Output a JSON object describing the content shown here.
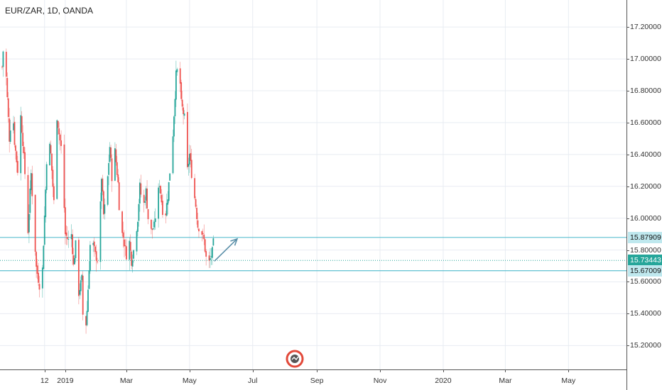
{
  "header": {
    "title": "EUR/ZAR, 1D, OANDA"
  },
  "chart_data": {
    "type": "candlestick",
    "symbol": "EUR/ZAR",
    "interval": "1D",
    "source": "OANDA",
    "ylim": [
      15.05,
      17.37
    ],
    "y_ticks": [
      "17.20000",
      "17.00000",
      "16.80000",
      "16.60000",
      "16.40000",
      "16.20000",
      "16.00000",
      "15.80000",
      "15.60000",
      "15.40000",
      "15.20000"
    ],
    "x_ticks": [
      "12",
      "2019",
      "Mar",
      "May",
      "Jul",
      "Sep",
      "Nov",
      "2020",
      "Mar",
      "May"
    ],
    "grid": true,
    "colors": {
      "up": "#26a69a",
      "down": "#ef5350",
      "level_line": "#5bbfd0",
      "arrow": "#5a8fa8",
      "current_badge": "#26a69a",
      "level_badge": "#bfe8ee"
    },
    "close_path": [
      [
        "2018-11-01",
        16.95
      ],
      [
        "2018-11-03",
        17.15
      ],
      [
        "2018-11-06",
        16.75
      ],
      [
        "2018-11-08",
        16.5
      ],
      [
        "2018-11-11",
        16.72
      ],
      [
        "2018-11-13",
        16.48
      ],
      [
        "2018-11-16",
        16.3
      ],
      [
        "2018-11-19",
        16.64
      ],
      [
        "2018-11-21",
        16.48
      ],
      [
        "2018-11-24",
        16.18
      ],
      [
        "2018-11-26",
        15.92
      ],
      [
        "2018-11-29",
        16.28
      ],
      [
        "2018-12-01",
        16.03
      ],
      [
        "2018-12-04",
        15.69
      ],
      [
        "2018-12-07",
        15.58
      ],
      [
        "2018-12-10",
        15.68
      ],
      [
        "2018-12-13",
        16.18
      ],
      [
        "2018-12-15",
        16.55
      ],
      [
        "2018-12-18",
        16.4
      ],
      [
        "2018-12-21",
        16.1
      ],
      [
        "2018-12-24",
        16.64
      ],
      [
        "2018-12-26",
        16.53
      ],
      [
        "2018-12-29",
        16.4
      ],
      [
        "2019-01-01",
        15.9
      ],
      [
        "2019-01-04",
        15.86
      ],
      [
        "2019-01-07",
        15.9
      ],
      [
        "2019-01-09",
        15.7
      ],
      [
        "2019-01-12",
        15.9
      ],
      [
        "2019-01-14",
        15.53
      ],
      [
        "2019-01-17",
        15.62
      ],
      [
        "2019-01-19",
        15.17
      ],
      [
        "2019-01-22",
        15.42
      ],
      [
        "2019-01-25",
        15.83
      ],
      [
        "2019-01-27",
        15.86
      ],
      [
        "2019-01-30",
        15.77
      ],
      [
        "2019-02-02",
        15.72
      ],
      [
        "2019-02-05",
        16.26
      ],
      [
        "2019-02-07",
        16.02
      ],
      [
        "2019-02-10",
        16.16
      ],
      [
        "2019-02-13",
        16.45
      ],
      [
        "2019-02-15",
        16.26
      ],
      [
        "2019-02-18",
        16.42
      ],
      [
        "2019-02-21",
        16.22
      ],
      [
        "2019-02-23",
        15.94
      ],
      [
        "2019-02-26",
        15.88
      ],
      [
        "2019-03-01",
        15.77
      ],
      [
        "2019-03-04",
        15.85
      ],
      [
        "2019-03-06",
        15.73
      ],
      [
        "2019-03-09",
        15.83
      ],
      [
        "2019-03-12",
        16.0
      ],
      [
        "2019-03-14",
        16.2
      ],
      [
        "2019-03-17",
        16.05
      ],
      [
        "2019-03-20",
        16.17
      ],
      [
        "2019-03-22",
        16.0
      ],
      [
        "2019-03-25",
        15.92
      ],
      [
        "2019-03-28",
        15.95
      ],
      [
        "2019-03-30",
        16.07
      ],
      [
        "2019-04-02",
        16.22
      ],
      [
        "2019-04-05",
        16.05
      ],
      [
        "2019-04-07",
        15.98
      ],
      [
        "2019-04-10",
        16.14
      ],
      [
        "2019-04-13",
        16.37
      ],
      [
        "2019-04-15",
        16.53
      ],
      [
        "2019-04-18",
        16.9
      ],
      [
        "2019-04-21",
        16.97
      ],
      [
        "2019-04-23",
        16.72
      ],
      [
        "2019-04-26",
        16.63
      ],
      [
        "2019-04-29",
        16.3
      ],
      [
        "2019-05-01",
        16.4
      ],
      [
        "2019-05-04",
        16.22
      ],
      [
        "2019-05-07",
        16.08
      ],
      [
        "2019-05-09",
        15.95
      ],
      [
        "2019-05-12",
        15.93
      ],
      [
        "2019-05-15",
        15.86
      ],
      [
        "2019-05-17",
        15.75
      ],
      [
        "2019-05-20",
        15.72
      ],
      [
        "2019-05-23",
        15.79
      ],
      [
        "2019-05-25",
        15.9
      ]
    ],
    "levels": [
      {
        "value": 15.87909,
        "label": "15.87909"
      },
      {
        "value": 15.73443,
        "label": "15.73443",
        "current": true
      },
      {
        "value": 15.67009,
        "label": "15.67009"
      }
    ],
    "arrow": {
      "from": [
        "2019-05-25",
        15.73
      ],
      "to": [
        "2019-06-16",
        15.87
      ]
    }
  }
}
